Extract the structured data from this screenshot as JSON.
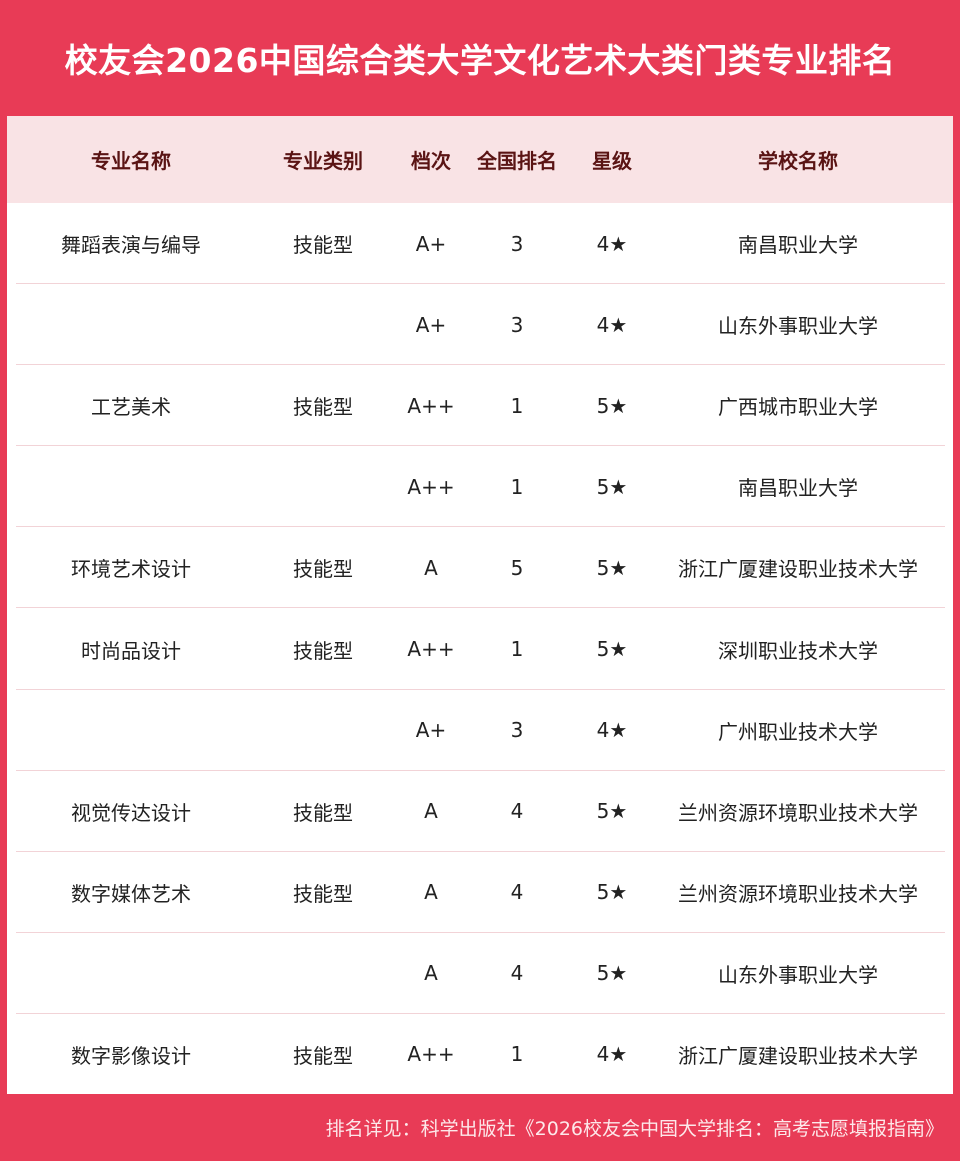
{
  "title": "校友会2026中国综合类大学文化艺术大类门类专业排名",
  "headers": [
    "专业名称",
    "专业类别",
    "档次",
    "全国排名",
    "星级",
    "学校名称"
  ],
  "rows": [
    [
      "舞蹈表演与编导",
      "技能型",
      "A+",
      "3",
      "4★",
      "南昌职业大学"
    ],
    [
      "",
      "",
      "A+",
      "3",
      "4★",
      "山东外事职业大学"
    ],
    [
      "工艺美术",
      "技能型",
      "A++",
      "1",
      "5★",
      "广西城市职业大学"
    ],
    [
      "",
      "",
      "A++",
      "1",
      "5★",
      "南昌职业大学"
    ],
    [
      "环境艺术设计",
      "技能型",
      "A",
      "5",
      "5★",
      "浙江广厦建设职业技术大学"
    ],
    [
      "时尚品设计",
      "技能型",
      "A++",
      "1",
      "5★",
      "深圳职业技术大学"
    ],
    [
      "",
      "",
      "A+",
      "3",
      "4★",
      "广州职业技术大学"
    ],
    [
      "视觉传达设计",
      "技能型",
      "A",
      "4",
      "5★",
      "兰州资源环境职业技术大学"
    ],
    [
      "数字媒体艺术",
      "技能型",
      "A",
      "4",
      "5★",
      "兰州资源环境职业技术大学"
    ],
    [
      "",
      "",
      "A",
      "4",
      "5★",
      "山东外事职业大学"
    ],
    [
      "数字影像设计",
      "技能型",
      "A++",
      "1",
      "4★",
      "浙江广厦建设职业技术大学"
    ]
  ],
  "footer": "排名详见：科学出版社《2026校友会中国大学排名：高考志愿填报指南》",
  "colors": {
    "brand": "#e83b56",
    "header_bg": "#f9e3e5",
    "header_text": "#5a1414"
  }
}
